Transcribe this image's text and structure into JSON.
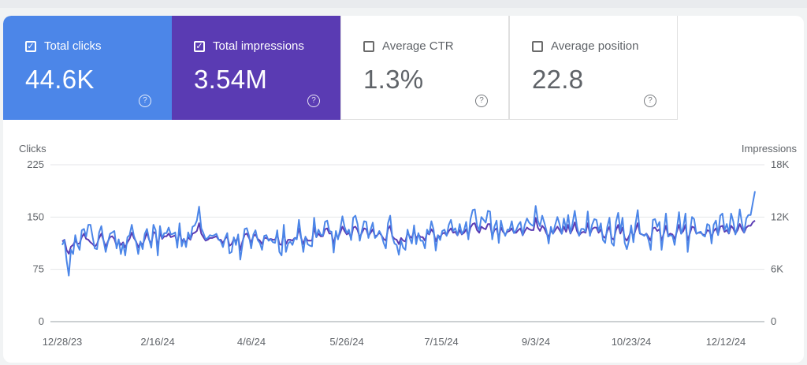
{
  "metrics": [
    {
      "label": "Total clicks",
      "value": "44.6K",
      "checked": true
    },
    {
      "label": "Total impressions",
      "value": "3.54M",
      "checked": true
    },
    {
      "label": "Average CTR",
      "value": "1.3%",
      "checked": false
    },
    {
      "label": "Average position",
      "value": "22.8",
      "checked": false
    }
  ],
  "colors": {
    "clicks": "#4c86e8",
    "impressions": "#5a3bb3"
  },
  "chart_data": {
    "type": "line",
    "ylabel": "Clicks",
    "y2label": "Impressions",
    "ylim": [
      0,
      225
    ],
    "y2lim": [
      0,
      18000
    ],
    "yticks": [
      "0",
      "75",
      "150",
      "225"
    ],
    "y2ticks": [
      "0",
      "6K",
      "12K",
      "18K"
    ],
    "xticks": [
      "12/28/23",
      "2/16/24",
      "4/6/24",
      "5/26/24",
      "7/15/24",
      "9/3/24",
      "10/23/24",
      "12/12/24"
    ],
    "grid": true,
    "series": [
      {
        "name": "Clicks",
        "axis": "left",
        "color": "#4c86e8",
        "values": [
          110,
          117,
          88,
          66,
          103,
          97,
          124,
          110,
          103,
          131,
          133,
          122,
          139,
          139,
          121,
          105,
          104,
          128,
          137,
          116,
          100,
          114,
          126,
          128,
          130,
          105,
          118,
          97,
          112,
          95,
          121,
          124,
          139,
          123,
          114,
          97,
          115,
          104,
          126,
          133,
          118,
          106,
          139,
          131,
          95,
          137,
          120,
          127,
          127,
          135,
          125,
          126,
          128,
          106,
          141,
          108,
          119,
          107,
          128,
          119,
          136,
          138,
          145,
          165,
          134,
          127,
          118,
          120,
          124,
          123,
          124,
          126,
          118,
          115,
          107,
          120,
          127,
          98,
          100,
          121,
          110,
          125,
          89,
          111,
          133,
          134,
          123,
          105,
          125,
          131,
          117,
          113,
          103,
          123,
          124,
          116,
          118,
          114,
          113,
          131,
          100,
          95,
          139,
          100,
          112,
          115,
          110,
          120,
          118,
          146,
          121,
          100,
          122,
          111,
          109,
          108,
          149,
          121,
          132,
          125,
          123,
          143,
          145,
          130,
          129,
          99,
          130,
          118,
          133,
          151,
          136,
          127,
          132,
          117,
          149,
          152,
          140,
          116,
          131,
          144,
          143,
          120,
          132,
          142,
          120,
          123,
          130,
          124,
          113,
          105,
          141,
          152,
          122,
          112,
          110,
          96,
          116,
          106,
          103,
          132,
          120,
          112,
          138,
          111,
          127,
          116,
          116,
          105,
          132,
          126,
          144,
          132,
          102,
          124,
          117,
          130,
          132,
          123,
          139,
          146,
          130,
          134,
          124,
          140,
          126,
          131,
          143,
          118,
          147,
          160,
          161,
          138,
          131,
          150,
          146,
          142,
          159,
          158,
          118,
          136,
          145,
          113,
          145,
          131,
          123,
          132,
          132,
          144,
          127,
          131,
          139,
          143,
          124,
          139,
          148,
          142,
          139,
          137,
          166,
          145,
          137,
          152,
          142,
          130,
          112,
          136,
          126,
          139,
          150,
          140,
          126,
          148,
          133,
          153,
          127,
          141,
          159,
          137,
          123,
          133,
          133,
          129,
          158,
          123,
          139,
          147,
          146,
          130,
          141,
          117,
          113,
          136,
          149,
          113,
          109,
          143,
          156,
          130,
          149,
          113,
          104,
          117,
          138,
          114,
          140,
          160,
          127,
          125,
          123,
          126,
          117,
          103,
          146,
          147,
          136,
          143,
          103,
          129,
          155,
          122,
          124,
          123,
          110,
          132,
          157,
          126,
          136,
          155,
          100,
          128,
          150,
          147,
          126,
          128,
          129,
          124,
          122,
          140,
          138,
          112,
          139,
          145,
          124,
          152,
          155,
          131,
          140,
          127,
          155,
          144,
          125,
          137,
          161,
          141,
          128,
          148,
          153,
          153,
          170,
          187
        ]
      },
      {
        "name": "Impressions",
        "axis": "right",
        "color": "#5a3bb3",
        "values": [
          9200,
          9400,
          8200,
          7800,
          8600,
          8800,
          9300,
          8900,
          9000,
          9700,
          10100,
          9500,
          9400,
          9100,
          8900,
          8600,
          8900,
          9600,
          10100,
          9300,
          8600,
          9200,
          9700,
          9800,
          9500,
          8700,
          9200,
          8800,
          9100,
          8500,
          9100,
          9500,
          10200,
          9600,
          9200,
          8500,
          9100,
          8800,
          9500,
          10200,
          9400,
          8900,
          10300,
          10100,
          8600,
          10200,
          9500,
          9800,
          9800,
          10100,
          9700,
          9800,
          9900,
          9000,
          10400,
          9200,
          9500,
          9000,
          9700,
          9400,
          10100,
          10200,
          10400,
          11300,
          10100,
          9700,
          9300,
          9400,
          9600,
          9600,
          9700,
          9800,
          9400,
          9400,
          9000,
          9500,
          9800,
          8700,
          8900,
          9500,
          9200,
          9800,
          8200,
          9200,
          10000,
          10100,
          9600,
          9100,
          9800,
          10000,
          9500,
          9300,
          8900,
          9600,
          9600,
          9400,
          9500,
          9400,
          9400,
          10000,
          8900,
          8800,
          10200,
          8900,
          9400,
          9400,
          9300,
          9600,
          9600,
          10700,
          9600,
          8900,
          9700,
          9300,
          9300,
          9300,
          10800,
          9700,
          10100,
          9800,
          9800,
          10600,
          10700,
          10100,
          10100,
          8900,
          10100,
          9600,
          10200,
          10900,
          10400,
          10000,
          10200,
          9600,
          10800,
          10900,
          10500,
          9700,
          10200,
          10700,
          10600,
          9800,
          10200,
          10600,
          9800,
          9900,
          10200,
          9900,
          9500,
          9300,
          10600,
          11000,
          9800,
          9500,
          9400,
          8900,
          9600,
          9300,
          9200,
          10200,
          9800,
          9600,
          10500,
          9500,
          10000,
          9700,
          9700,
          9300,
          10200,
          10000,
          10600,
          10200,
          9200,
          9900,
          9700,
          10100,
          10200,
          9900,
          10400,
          10700,
          10200,
          10300,
          9900,
          10500,
          10000,
          10200,
          10600,
          9800,
          10800,
          11200,
          11300,
          10500,
          10200,
          10900,
          10700,
          10600,
          11200,
          11200,
          9800,
          10500,
          10700,
          9600,
          10800,
          10300,
          10000,
          10300,
          10400,
          10700,
          10200,
          10200,
          10500,
          10700,
          9900,
          10400,
          10800,
          10600,
          10500,
          10500,
          11900,
          10800,
          10400,
          11000,
          10700,
          10100,
          9700,
          10500,
          10100,
          10500,
          10900,
          10500,
          10100,
          10900,
          10300,
          11100,
          10100,
          10600,
          11400,
          10400,
          9900,
          10200,
          10300,
          10200,
          11300,
          10000,
          10600,
          10800,
          10800,
          10200,
          10600,
          9800,
          9600,
          10400,
          10900,
          9600,
          9400,
          10500,
          11100,
          10100,
          10800,
          9600,
          9300,
          9800,
          10500,
          9700,
          10500,
          11300,
          10100,
          10000,
          9900,
          10100,
          9700,
          9300,
          10700,
          10800,
          10400,
          10600,
          9300,
          10100,
          11000,
          9900,
          10100,
          10000,
          9500,
          10300,
          11100,
          10100,
          10400,
          11100,
          9300,
          10100,
          10900,
          10800,
          10100,
          10200,
          10200,
          10000,
          9900,
          10500,
          10400,
          9700,
          10400,
          10700,
          10000,
          10900,
          11000,
          10300,
          10500,
          10100,
          11000,
          10700,
          10100,
          10500,
          11200,
          10600,
          10200,
          10800,
          11000,
          11000,
          11400,
          11600
        ]
      }
    ],
    "peaks_note_free": true
  }
}
